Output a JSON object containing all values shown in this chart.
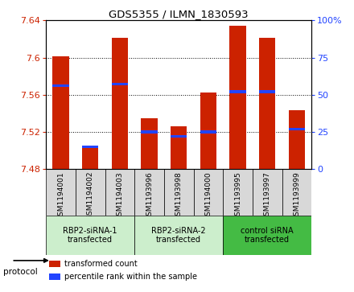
{
  "title": "GDS5355 / ILMN_1830593",
  "samples": [
    "GSM1194001",
    "GSM1194002",
    "GSM1194003",
    "GSM1193996",
    "GSM1193998",
    "GSM1194000",
    "GSM1193995",
    "GSM1193997",
    "GSM1193999"
  ],
  "bar_values": [
    7.601,
    7.504,
    7.621,
    7.535,
    7.526,
    7.562,
    7.634,
    7.621,
    7.543
  ],
  "percentile_values": [
    56,
    15,
    57,
    25,
    22,
    25,
    52,
    52,
    27
  ],
  "y_min": 7.48,
  "y_max": 7.64,
  "y_ticks": [
    7.48,
    7.52,
    7.56,
    7.6,
    7.64
  ],
  "y2_ticks": [
    0,
    25,
    50,
    75,
    100
  ],
  "bar_color": "#cc2200",
  "blue_color": "#2244ff",
  "groups": [
    {
      "label": "RBP2-siRNA-1\ntransfected",
      "start": 0,
      "end": 3,
      "color": "#cceecc"
    },
    {
      "label": "RBP2-siRNA-2\ntransfected",
      "start": 3,
      "end": 6,
      "color": "#cceecc"
    },
    {
      "label": "control siRNA\ntransfected",
      "start": 6,
      "end": 9,
      "color": "#44bb44"
    }
  ],
  "legend_items": [
    {
      "color": "#cc2200",
      "label": "transformed count"
    },
    {
      "color": "#2244ff",
      "label": "percentile rank within the sample"
    }
  ],
  "protocol_label": "protocol",
  "sample_bg_color": "#d8d8d8",
  "plot_bg_color": "#ffffff"
}
